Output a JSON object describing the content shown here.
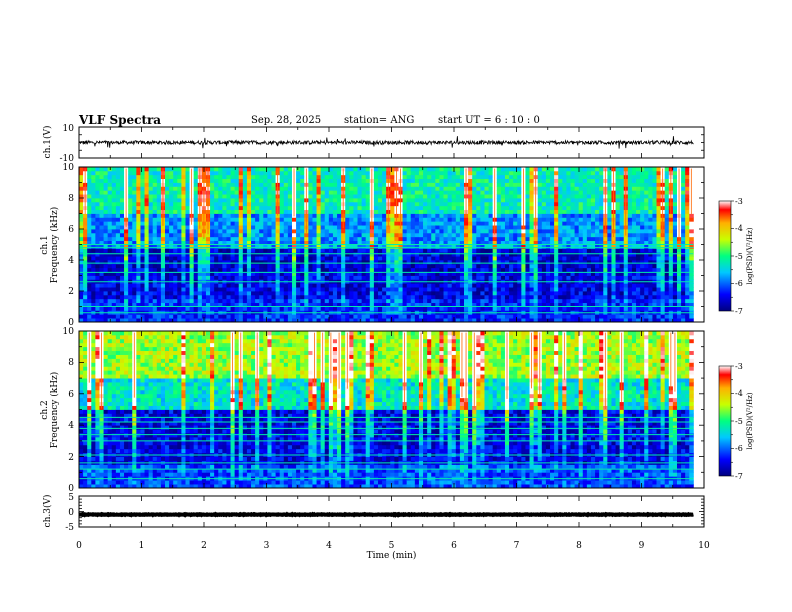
{
  "header": {
    "title": "VLF Spectra",
    "date": "Sep. 28, 2025",
    "station": "station= ANG",
    "start": "start  UT =   6  : 10 : 0"
  },
  "chart_data": {
    "type": "heatmap",
    "title": "VLF Spectra",
    "xlabel": "Time  (min)",
    "xlim": [
      0,
      10
    ],
    "x_ticks": [
      "0",
      "1",
      "2",
      "3",
      "4",
      "5",
      "6",
      "7",
      "8",
      "9",
      "10"
    ],
    "data_end_min": 9.83,
    "panels": [
      {
        "id": "ch1-waveform",
        "kind": "line",
        "ylabel": "ch.1(V)",
        "ylim": [
          -10,
          10
        ],
        "y_ticks": [
          "10",
          "-10"
        ],
        "trace_level": 0,
        "trace_amplitude": 1.2
      },
      {
        "id": "ch1-spectrogram",
        "kind": "heatmap",
        "ylabel_line1": "ch.1",
        "ylabel_line2": "Frequency  (kHz)",
        "ylim": [
          0,
          10
        ],
        "y_ticks": [
          "0",
          "2",
          "4",
          "6",
          "8",
          "10"
        ],
        "colorbar": {
          "label": "log(PSD)(V²/Hz)",
          "range": [
            -7,
            -3
          ],
          "ticks": [
            "-3",
            "-4",
            "-5",
            "-6",
            "-7"
          ]
        },
        "intensity_profile": [
          {
            "freq_khz": [
              0,
              1.5
            ],
            "level": 0.18
          },
          {
            "freq_khz": [
              1.5,
              3.0
            ],
            "level": 0.12
          },
          {
            "freq_khz": [
              3.0,
              4.7
            ],
            "level": 0.1
          },
          {
            "freq_khz": [
              4.7,
              7.0
            ],
            "level": 0.3
          },
          {
            "freq_khz": [
              7.0,
              10.0
            ],
            "level": 0.45
          }
        ],
        "line_features_khz": [
          0.6,
          1.0,
          2.6,
          3.2,
          3.8,
          4.4,
          4.8,
          5.0
        ]
      },
      {
        "id": "ch2-spectrogram",
        "kind": "heatmap",
        "ylabel_line1": "ch.2",
        "ylabel_line2": "Frequency  (kHz)",
        "ylim": [
          0,
          10
        ],
        "y_ticks": [
          "0",
          "2",
          "4",
          "6",
          "8",
          "10"
        ],
        "colorbar": {
          "label": "log(PSD)(V²/Hz)",
          "range": [
            -7,
            -3
          ],
          "ticks": [
            "-3",
            "-4",
            "-5",
            "-6",
            "-7"
          ]
        },
        "intensity_profile": [
          {
            "freq_khz": [
              0,
              1.5
            ],
            "level": 0.22
          },
          {
            "freq_khz": [
              1.5,
              3.0
            ],
            "level": 0.12
          },
          {
            "freq_khz": [
              3.0,
              5.0
            ],
            "level": 0.12
          },
          {
            "freq_khz": [
              5.0,
              7.0
            ],
            "level": 0.42
          },
          {
            "freq_khz": [
              7.0,
              10.0
            ],
            "level": 0.62
          }
        ],
        "line_features_khz": [
          0.6,
          1.2,
          1.6,
          2.1,
          3.0,
          3.4,
          3.8,
          4.2,
          4.5
        ]
      },
      {
        "id": "ch3-waveform",
        "kind": "line",
        "ylabel": "ch.3(V)",
        "ylim": [
          -5,
          5
        ],
        "y_ticks": [
          "5",
          "0",
          "-5"
        ],
        "trace_level": -1,
        "trace_amplitude": 0.3
      }
    ]
  }
}
